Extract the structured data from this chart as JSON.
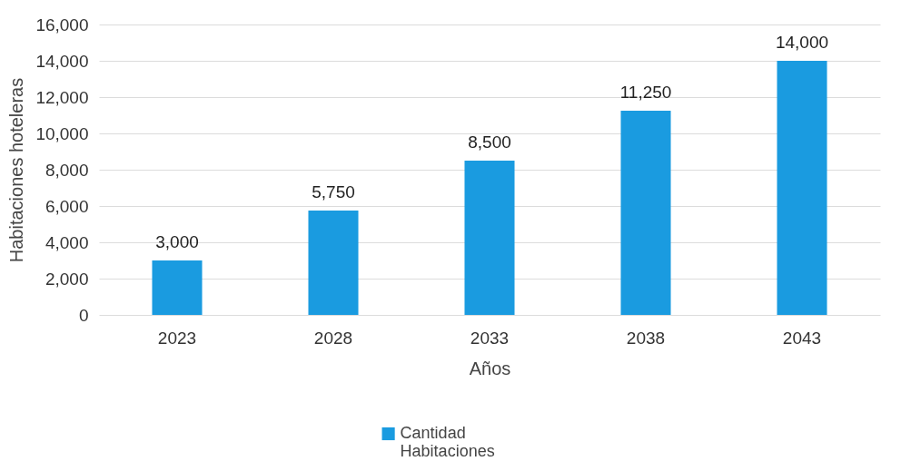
{
  "chart_data": {
    "type": "bar",
    "xlabel": "Años",
    "ylabel": "Habitaciones hoteleras",
    "categories": [
      "2023",
      "2028",
      "2033",
      "2038",
      "2043"
    ],
    "series": [
      {
        "name": "Cantidad Habitaciones",
        "color": "#1a9be0",
        "values": [
          3000,
          5750,
          8500,
          11250,
          14000
        ],
        "value_labels": [
          "3,000",
          "5,750",
          "8,500",
          "11,250",
          "14,000"
        ]
      }
    ],
    "ylim": [
      0,
      16000
    ],
    "yticks": [
      0,
      {
        "value": 2000,
        "label": "2,000"
      },
      {
        "value": 4000,
        "label": "4,000"
      },
      {
        "value": 6000,
        "label": "6,000"
      },
      {
        "value": 8000,
        "label": "8,000"
      },
      {
        "value": 10000,
        "label": "10,000"
      },
      {
        "value": 12000,
        "label": "12,000"
      },
      {
        "value": 14000,
        "label": "14,000"
      },
      {
        "value": 16000,
        "label": "16,000"
      }
    ],
    "grid": "y",
    "legend": "bottom"
  }
}
